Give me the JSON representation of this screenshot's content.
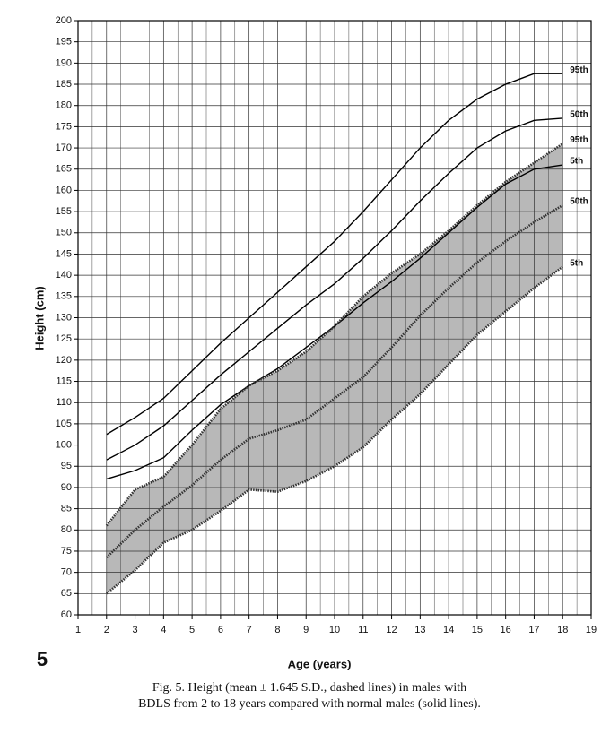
{
  "page_number": "5",
  "caption": [
    "Fig. 5.   Height (mean ± 1.645 S.D., dashed lines) in males with",
    "BDLS from 2 to 18 years compared with normal males (solid lines)."
  ],
  "chart_data": {
    "type": "line",
    "xlabel": "Age (years)",
    "ylabel": "Height (cm)",
    "x": [
      2,
      3,
      4,
      5,
      6,
      7,
      8,
      9,
      10,
      11,
      12,
      13,
      14,
      15,
      16,
      17,
      18
    ],
    "xlim": [
      1,
      19
    ],
    "xticks": [
      1,
      2,
      3,
      4,
      5,
      6,
      7,
      8,
      9,
      10,
      11,
      12,
      13,
      14,
      15,
      16,
      17,
      18,
      19
    ],
    "ylim": [
      60,
      200
    ],
    "yticks": [
      60,
      65,
      70,
      75,
      80,
      85,
      90,
      95,
      100,
      105,
      110,
      115,
      120,
      125,
      130,
      135,
      140,
      145,
      150,
      155,
      160,
      165,
      170,
      175,
      180,
      185,
      190,
      195,
      200
    ],
    "grid": true,
    "minor_grid": true,
    "shade_color": "#b8b8b8",
    "series": [
      {
        "name": "95th",
        "color": "#000000",
        "dashed": false,
        "values": [
          102.5,
          106.5,
          111,
          117.5,
          124,
          130,
          136,
          142,
          148,
          155,
          162.5,
          170,
          176.5,
          181.5,
          185,
          187.5,
          187.5
        ]
      },
      {
        "name": "50th",
        "color": "#000000",
        "dashed": false,
        "values": [
          96.5,
          100,
          104.5,
          110.5,
          116.5,
          122,
          127.5,
          133,
          138,
          144,
          150.5,
          157.5,
          164,
          170,
          174,
          176.5,
          177
        ]
      },
      {
        "name": "5th",
        "color": "#000000",
        "dashed": false,
        "values": [
          92,
          94,
          97,
          103.5,
          109.5,
          114,
          118,
          123,
          128,
          133.5,
          138.5,
          144,
          150,
          156,
          161.5,
          165,
          166
        ]
      },
      {
        "name": "95th",
        "color": "#333333",
        "dashed": true,
        "values": [
          81,
          89.5,
          92.5,
          100,
          108.5,
          114,
          117.5,
          122,
          128,
          135,
          140.5,
          145,
          150.5,
          156.5,
          162,
          166.5,
          171
        ]
      },
      {
        "name": "50th",
        "color": "#333333",
        "dashed": true,
        "values": [
          73.5,
          80,
          85.5,
          90.5,
          96.5,
          101.5,
          103.5,
          106,
          111,
          116,
          123,
          130.5,
          137,
          143,
          148,
          152.5,
          156.5
        ]
      },
      {
        "name": "5th",
        "color": "#333333",
        "dashed": true,
        "values": [
          65,
          70.5,
          77,
          80,
          84.5,
          89.5,
          89,
          91.5,
          95,
          99.5,
          106,
          112,
          119,
          126,
          131.5,
          137,
          142
        ]
      }
    ]
  }
}
